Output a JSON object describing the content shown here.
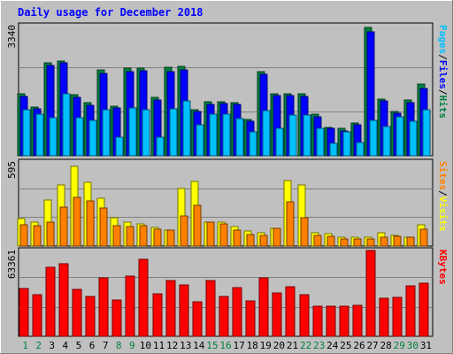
{
  "chart_data": [
    {
      "type": "bar",
      "title": "Daily usage for December 2018",
      "categories": [
        "1",
        "2",
        "3",
        "4",
        "5",
        "6",
        "7",
        "8",
        "9",
        "10",
        "11",
        "12",
        "13",
        "14",
        "15",
        "16",
        "17",
        "18",
        "19",
        "20",
        "21",
        "22",
        "23",
        "24",
        "25",
        "26",
        "27",
        "28",
        "29",
        "30",
        "31"
      ],
      "weekend_days": [
        "1",
        "2",
        "8",
        "9",
        "15",
        "16",
        "22",
        "23",
        "29",
        "30"
      ],
      "ymax_label": "3340",
      "ylim": [
        0,
        3340
      ],
      "right_label": [
        "Pages",
        "/",
        "Files",
        "/",
        "Hits"
      ],
      "series": [
        {
          "name": "Hits",
          "color": "#008040",
          "values": [
            1580,
            1240,
            2370,
            2420,
            1560,
            1350,
            2200,
            1270,
            2240,
            2230,
            1500,
            2250,
            2270,
            1170,
            1370,
            1380,
            1350,
            930,
            2150,
            1590,
            1590,
            1570,
            1050,
            730,
            690,
            840,
            3270,
            1440,
            1130,
            1420,
            1830
          ]
        },
        {
          "name": "Files",
          "color": "#0000ff",
          "values": [
            1510,
            1190,
            2300,
            2360,
            1490,
            1290,
            2110,
            1210,
            2150,
            2170,
            1420,
            2150,
            2180,
            1130,
            1320,
            1330,
            1310,
            880,
            2080,
            1530,
            1540,
            1510,
            990,
            690,
            640,
            800,
            3160,
            1390,
            1090,
            1350,
            1720
          ]
        },
        {
          "name": "Pages",
          "color": "#00c0ff",
          "values": [
            1180,
            1060,
            970,
            1580,
            960,
            900,
            1170,
            480,
            1220,
            1180,
            470,
            1200,
            1400,
            780,
            1060,
            1060,
            950,
            620,
            1160,
            690,
            1040,
            1030,
            710,
            310,
            600,
            330,
            900,
            740,
            1000,
            880,
            1180
          ]
        }
      ]
    },
    {
      "type": "bar",
      "ymax_label": "595",
      "ylim": [
        0,
        595
      ],
      "right_label": [
        "Sites",
        "/",
        "Visits"
      ],
      "series": [
        {
          "name": "Visits",
          "color": "#ffff00",
          "values": [
            190,
            170,
            325,
            425,
            560,
            445,
            335,
            200,
            165,
            155,
            130,
            110,
            405,
            450,
            170,
            165,
            135,
            105,
            95,
            125,
            460,
            425,
            90,
            85,
            65,
            65,
            60,
            95,
            75,
            60,
            150
          ]
        },
        {
          "name": "Sites",
          "color": "#ff8000",
          "values": [
            150,
            140,
            170,
            270,
            340,
            315,
            265,
            140,
            135,
            145,
            115,
            110,
            210,
            285,
            165,
            155,
            110,
            80,
            75,
            125,
            310,
            200,
            75,
            70,
            50,
            50,
            50,
            60,
            70,
            60,
            120
          ]
        }
      ]
    },
    {
      "type": "bar",
      "ymax_label": "63361",
      "ylim": [
        0,
        63361
      ],
      "right_label": [
        "KBytes"
      ],
      "series": [
        {
          "name": "KBytes",
          "color": "#ff0000",
          "values": [
            35000,
            30500,
            50400,
            52800,
            34300,
            28800,
            42400,
            26200,
            44100,
            56200,
            31300,
            40600,
            37700,
            25100,
            40700,
            29400,
            35400,
            25800,
            42800,
            31500,
            35900,
            30500,
            21900,
            22100,
            21800,
            22500,
            62500,
            28100,
            28200,
            36600,
            39100
          ]
        }
      ]
    }
  ]
}
